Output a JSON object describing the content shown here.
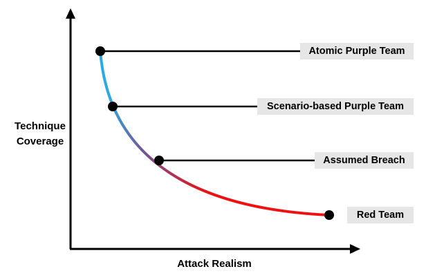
{
  "axes": {
    "y_label_line1": "Technique",
    "y_label_line2": "Coverage",
    "x_label": "Attack Realism"
  },
  "points": [
    {
      "label": "Atomic Purple Team"
    },
    {
      "label": "Scenario-based Purple Team"
    },
    {
      "label": "Assumed Breach"
    },
    {
      "label": "Red Team"
    }
  ],
  "colors": {
    "curve_start": "#29abe2",
    "curve_mid": "#7a5090",
    "curve_end": "#ee1111",
    "tag_background": "#e6e6e6",
    "axis": "#000000"
  }
}
